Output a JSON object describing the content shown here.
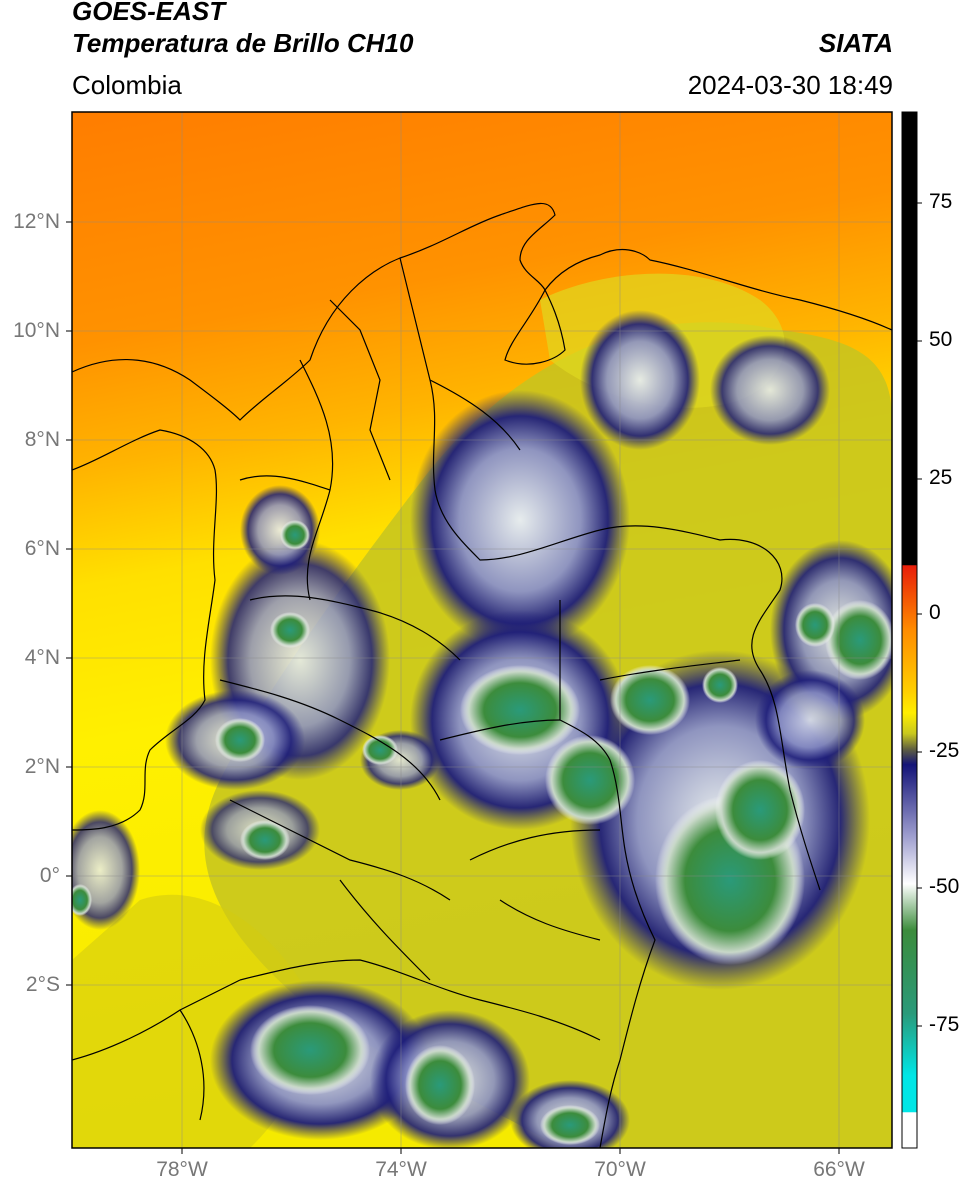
{
  "header": {
    "satellite": "GOES-EAST",
    "product": "Temperatura de Brillo CH10",
    "region": "Colombia",
    "agency": "SIATA",
    "datetime": "2024-03-30 18:49"
  },
  "map": {
    "lat_labels": [
      "12°N",
      "10°N",
      "8°N",
      "6°N",
      "4°N",
      "2°N",
      "0°",
      "2°S"
    ],
    "lon_labels": [
      "78°W",
      "74°W",
      "70°W",
      "66°W"
    ],
    "extent": {
      "lon_min": -80.0,
      "lon_max": -65.0,
      "lat_min": -5.0,
      "lat_max": 14.0
    }
  },
  "colorbar": {
    "tick_labels": [
      "75",
      "50",
      "25",
      "0",
      "-25",
      "-50",
      "-75"
    ],
    "range": [
      -95,
      90
    ],
    "colors": {
      "black_warm": "#000000",
      "red": "#e81e0a",
      "orange": "#ff8c00",
      "yellow": "#ffee00",
      "olive": "#c8c81e",
      "navy": "#141478",
      "white": "#ffffff",
      "green": "#3c8c3c",
      "teal": "#32b4a0",
      "cyan": "#00e6e6"
    }
  }
}
